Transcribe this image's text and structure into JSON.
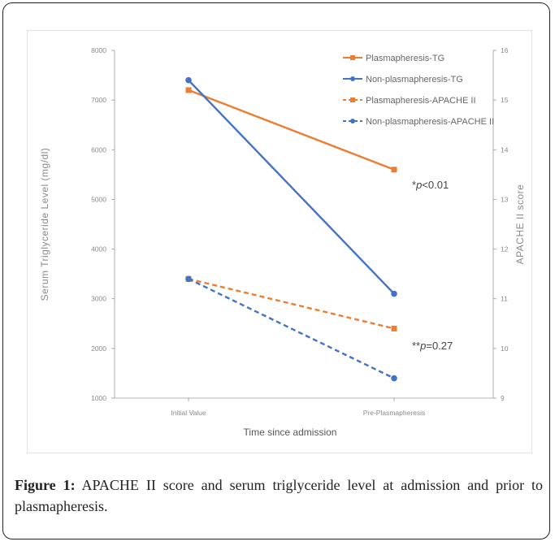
{
  "colors": {
    "plasmapheresis": "#ed7d31",
    "non_plasmapheresis": "#4472c4",
    "axis": "#9a9a9a",
    "text": "#222222"
  },
  "caption": {
    "label": "Figure 1:",
    "text": " APACHE II score and serum triglyceride level at admission and prior to plasmapheresis."
  },
  "chart_data": {
    "type": "line",
    "categories": [
      "Initial Value",
      "Pre-Plasmapheresis"
    ],
    "xlabel": "Time since admission",
    "ylabel_left": "Serum Triglyceride Level (mg/dl)",
    "ylabel_right": "APACHE II score",
    "ylim_left": [
      1000,
      8000
    ],
    "ylim_right": [
      9,
      16
    ],
    "yticks_left": [
      1000,
      2000,
      3000,
      4000,
      5000,
      6000,
      7000,
      8000
    ],
    "yticks_right": [
      9,
      10,
      11,
      12,
      13,
      14,
      15,
      16
    ],
    "grid": false,
    "legend_position": "top-right",
    "series": [
      {
        "name": "Plasmapheresis-TG",
        "axis": "left",
        "values": [
          7200,
          5600
        ],
        "color": "#ed7d31",
        "dashed": false,
        "marker": "square"
      },
      {
        "name": "Non-plasmapheresis-TG",
        "axis": "left",
        "values": [
          7400,
          3100
        ],
        "color": "#4472c4",
        "dashed": false,
        "marker": "circle"
      },
      {
        "name": "Plasmapheresis-APACHE II",
        "axis": "right",
        "values": [
          11.4,
          10.4
        ],
        "color": "#ed7d31",
        "dashed": true,
        "marker": "square"
      },
      {
        "name": "Non-plasmapheresis-APACHE II",
        "axis": "right",
        "values": [
          11.4,
          9.4
        ],
        "color": "#4472c4",
        "dashed": true,
        "marker": "circle"
      }
    ],
    "annotations": [
      {
        "prefix": "*",
        "italic": "p",
        "suffix": "<0.01"
      },
      {
        "prefix": "**",
        "italic": "p",
        "suffix": "=0.27"
      }
    ]
  }
}
